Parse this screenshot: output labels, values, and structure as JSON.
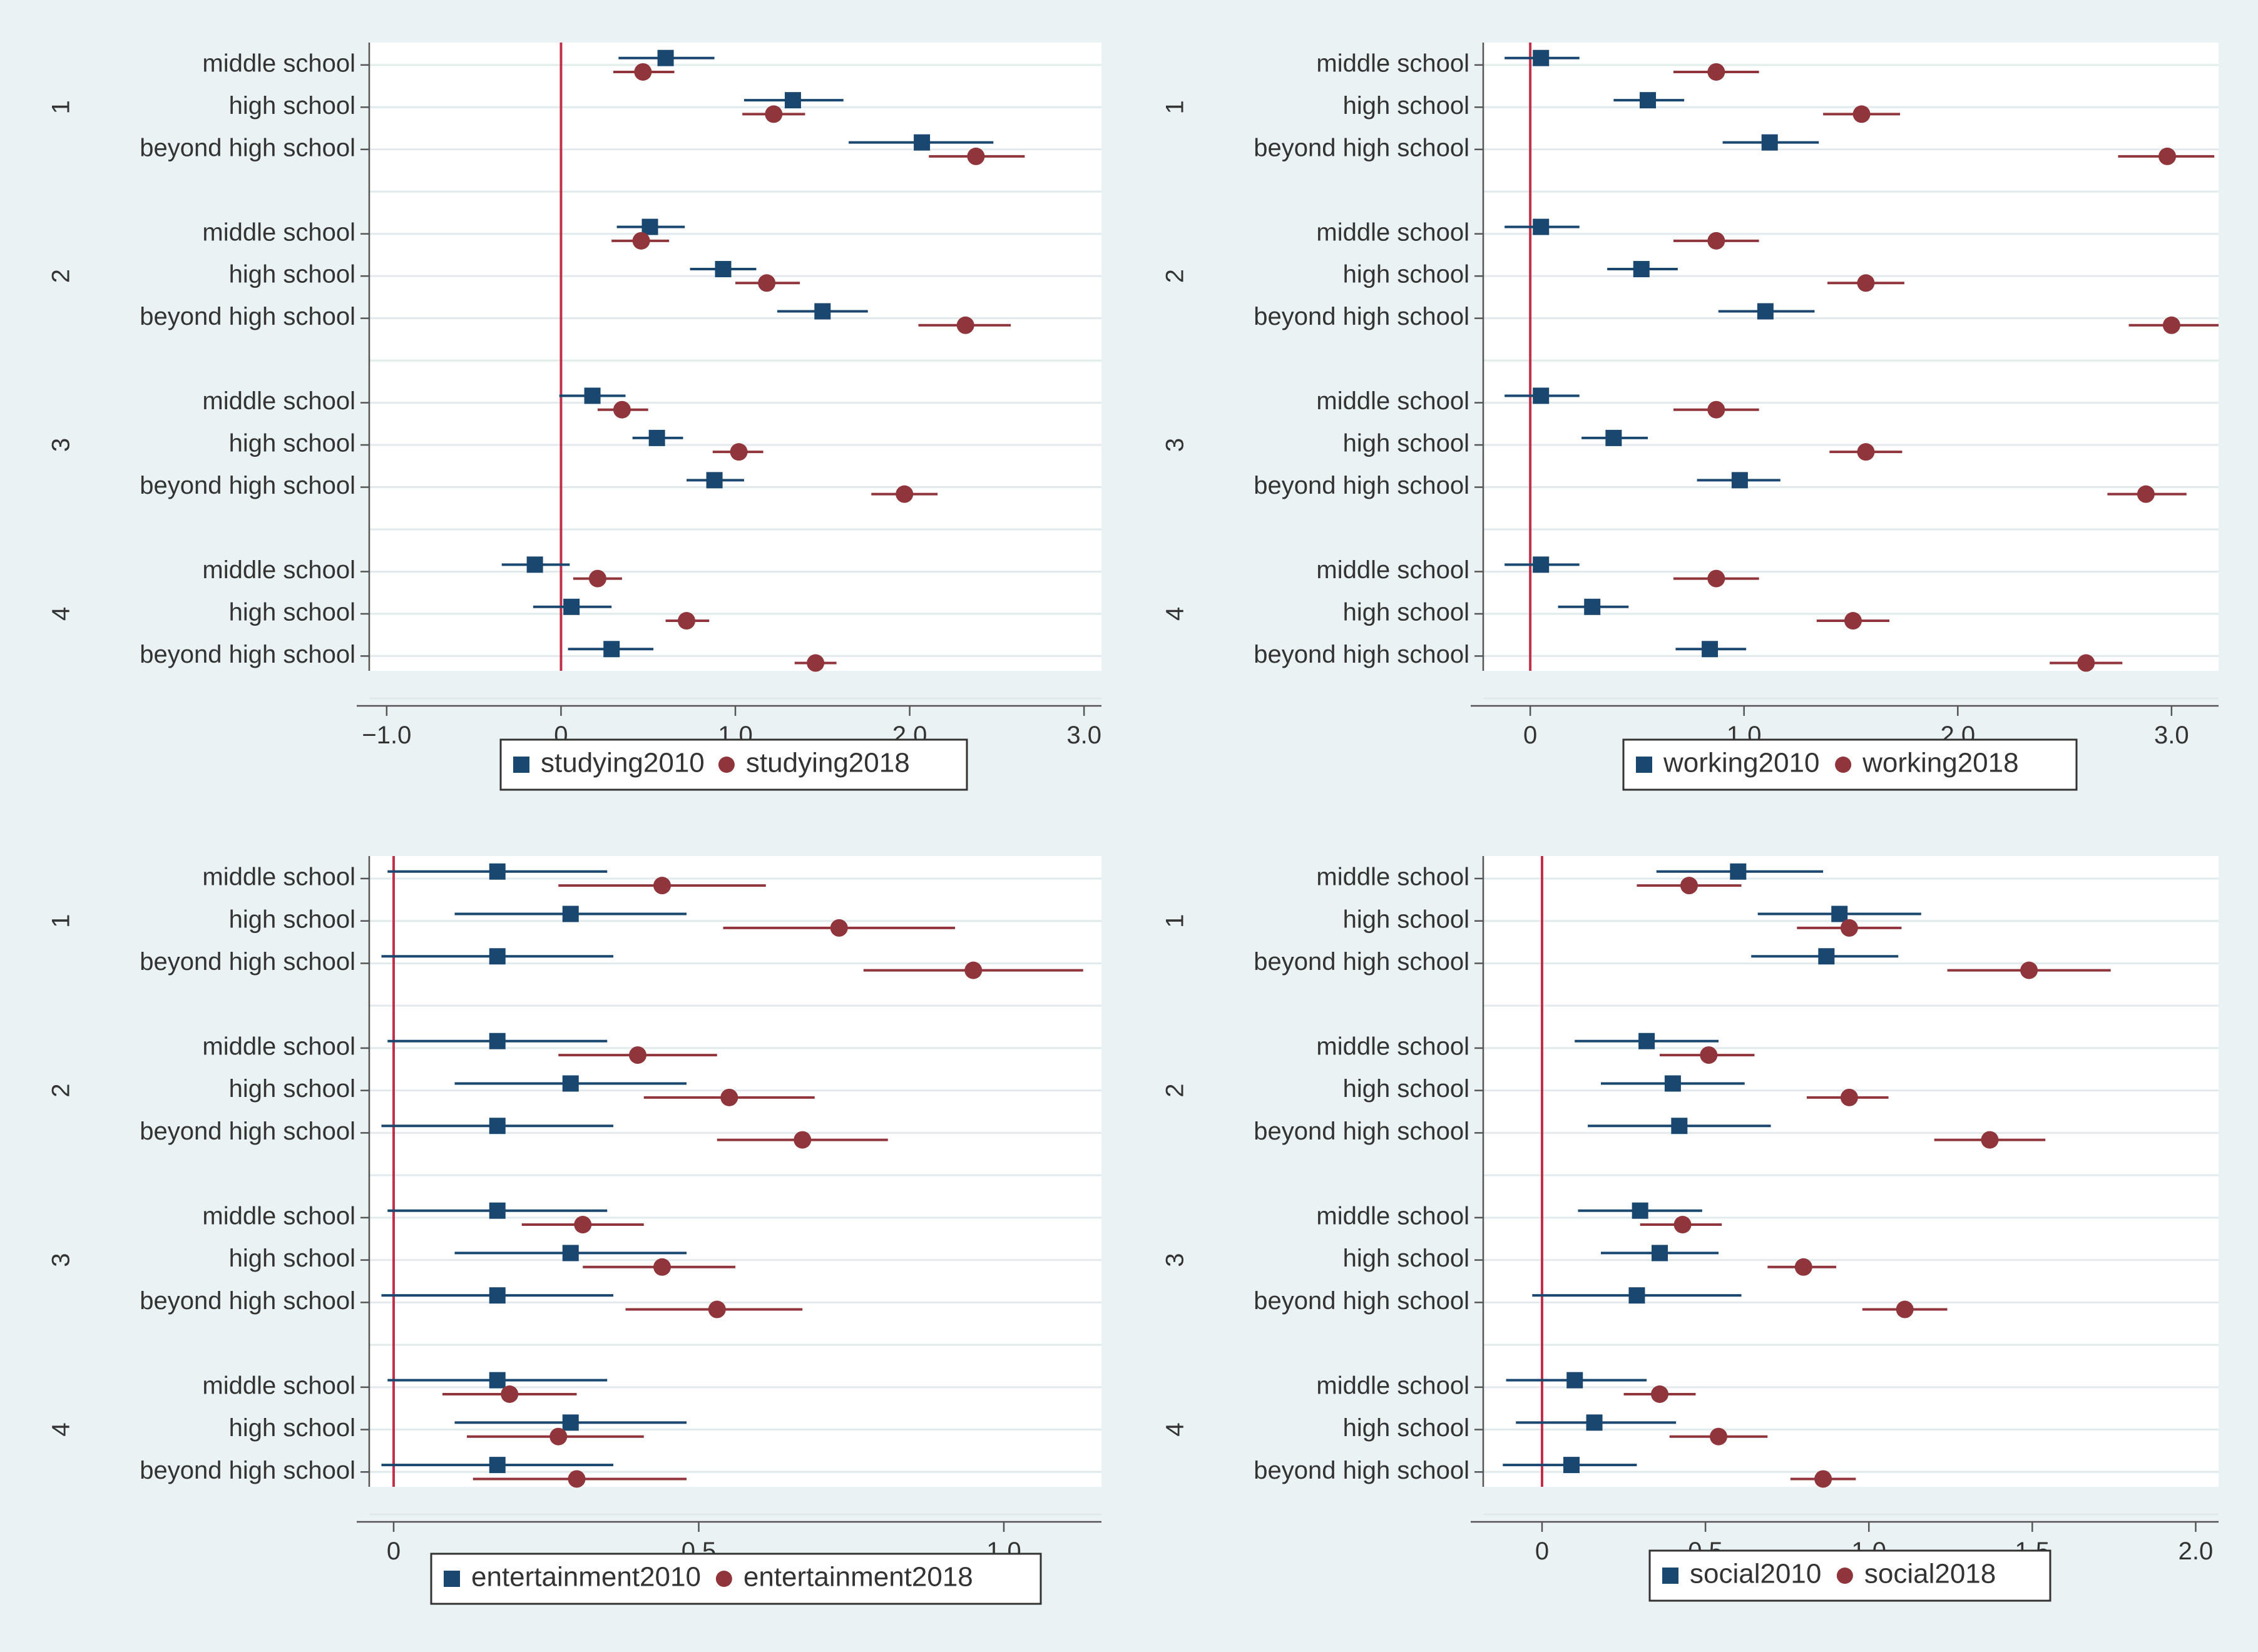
{
  "colors": {
    "background": "#eaf2f3",
    "plot_background": "#ffffff",
    "series_2010": "#1a476f",
    "series_2018": "#90353b",
    "zero_line": "#c0304a",
    "grid": "#e2eaeb",
    "text": "#333333"
  },
  "chart_data": [
    {
      "type": "scatter",
      "subtype": "coefficient-plot",
      "title": "",
      "xlabel": "",
      "ylabel": "",
      "xlim": [
        -1.1,
        3.1
      ],
      "xticks": [
        -1,
        0,
        1,
        2,
        3
      ],
      "xtick_labels": [
        "−1.0",
        "0",
        "1.0",
        "2.0",
        "3.0"
      ],
      "reference_line": 0,
      "groups": [
        "1",
        "2",
        "3",
        "4"
      ],
      "categories": [
        "middle school",
        "high school",
        "beyond high school"
      ],
      "series": [
        {
          "name": "studying2010",
          "marker": "square",
          "color": "#1a476f",
          "points": [
            {
              "est": 0.6,
              "lo": 0.33,
              "hi": 0.88
            },
            {
              "est": 1.33,
              "lo": 1.05,
              "hi": 1.62
            },
            {
              "est": 2.07,
              "lo": 1.65,
              "hi": 2.48
            },
            {
              "est": 0.51,
              "lo": 0.32,
              "hi": 0.71
            },
            {
              "est": 0.93,
              "lo": 0.74,
              "hi": 1.12
            },
            {
              "est": 1.5,
              "lo": 1.24,
              "hi": 1.76
            },
            {
              "est": 0.18,
              "lo": -0.01,
              "hi": 0.37
            },
            {
              "est": 0.55,
              "lo": 0.41,
              "hi": 0.7
            },
            {
              "est": 0.88,
              "lo": 0.72,
              "hi": 1.05
            },
            {
              "est": -0.15,
              "lo": -0.34,
              "hi": 0.05
            },
            {
              "est": 0.06,
              "lo": -0.16,
              "hi": 0.29
            },
            {
              "est": 0.29,
              "lo": 0.04,
              "hi": 0.53
            }
          ]
        },
        {
          "name": "studying2018",
          "marker": "circle",
          "color": "#90353b",
          "points": [
            {
              "est": 0.47,
              "lo": 0.3,
              "hi": 0.65
            },
            {
              "est": 1.22,
              "lo": 1.04,
              "hi": 1.4
            },
            {
              "est": 2.38,
              "lo": 2.11,
              "hi": 2.66
            },
            {
              "est": 0.46,
              "lo": 0.29,
              "hi": 0.62
            },
            {
              "est": 1.18,
              "lo": 1.0,
              "hi": 1.37
            },
            {
              "est": 2.32,
              "lo": 2.05,
              "hi": 2.58
            },
            {
              "est": 0.35,
              "lo": 0.21,
              "hi": 0.5
            },
            {
              "est": 1.02,
              "lo": 0.87,
              "hi": 1.16
            },
            {
              "est": 1.97,
              "lo": 1.78,
              "hi": 2.16
            },
            {
              "est": 0.21,
              "lo": 0.07,
              "hi": 0.35
            },
            {
              "est": 0.72,
              "lo": 0.6,
              "hi": 0.85
            },
            {
              "est": 1.46,
              "lo": 1.34,
              "hi": 1.58
            }
          ]
        }
      ]
    },
    {
      "type": "scatter",
      "subtype": "coefficient-plot",
      "title": "",
      "xlabel": "",
      "ylabel": "",
      "xlim": [
        -0.22,
        3.22
      ],
      "xticks": [
        0,
        1,
        2,
        3
      ],
      "xtick_labels": [
        "0",
        "1.0",
        "2.0",
        "3.0"
      ],
      "reference_line": 0,
      "groups": [
        "1",
        "2",
        "3",
        "4"
      ],
      "categories": [
        "middle school",
        "high school",
        "beyond high school"
      ],
      "series": [
        {
          "name": "working2010",
          "marker": "square",
          "color": "#1a476f",
          "points": [
            {
              "est": 0.05,
              "lo": -0.12,
              "hi": 0.23
            },
            {
              "est": 0.55,
              "lo": 0.39,
              "hi": 0.72
            },
            {
              "est": 1.12,
              "lo": 0.9,
              "hi": 1.35
            },
            {
              "est": 0.05,
              "lo": -0.12,
              "hi": 0.23
            },
            {
              "est": 0.52,
              "lo": 0.36,
              "hi": 0.69
            },
            {
              "est": 1.1,
              "lo": 0.88,
              "hi": 1.33
            },
            {
              "est": 0.05,
              "lo": -0.12,
              "hi": 0.23
            },
            {
              "est": 0.39,
              "lo": 0.24,
              "hi": 0.55
            },
            {
              "est": 0.98,
              "lo": 0.78,
              "hi": 1.17
            },
            {
              "est": 0.05,
              "lo": -0.12,
              "hi": 0.23
            },
            {
              "est": 0.29,
              "lo": 0.13,
              "hi": 0.46
            },
            {
              "est": 0.84,
              "lo": 0.68,
              "hi": 1.01
            }
          ]
        },
        {
          "name": "working2018",
          "marker": "circle",
          "color": "#90353b",
          "points": [
            {
              "est": 0.87,
              "lo": 0.67,
              "hi": 1.07
            },
            {
              "est": 1.55,
              "lo": 1.37,
              "hi": 1.73
            },
            {
              "est": 2.98,
              "lo": 2.75,
              "hi": 3.2
            },
            {
              "est": 0.87,
              "lo": 0.67,
              "hi": 1.07
            },
            {
              "est": 1.57,
              "lo": 1.39,
              "hi": 1.75
            },
            {
              "est": 3.0,
              "lo": 2.8,
              "hi": 3.22
            },
            {
              "est": 0.87,
              "lo": 0.67,
              "hi": 1.07
            },
            {
              "est": 1.57,
              "lo": 1.4,
              "hi": 1.74
            },
            {
              "est": 2.88,
              "lo": 2.7,
              "hi": 3.07
            },
            {
              "est": 0.87,
              "lo": 0.67,
              "hi": 1.07
            },
            {
              "est": 1.51,
              "lo": 1.34,
              "hi": 1.68
            },
            {
              "est": 2.6,
              "lo": 2.43,
              "hi": 2.77
            }
          ]
        }
      ]
    },
    {
      "type": "scatter",
      "subtype": "coefficient-plot",
      "title": "",
      "xlabel": "",
      "ylabel": "",
      "xlim": [
        -0.04,
        1.16
      ],
      "xticks": [
        0,
        0.5,
        1.0
      ],
      "xtick_labels": [
        "0",
        "0.5",
        "1.0"
      ],
      "reference_line": 0,
      "groups": [
        "1",
        "2",
        "3",
        "4"
      ],
      "categories": [
        "middle school",
        "high school",
        "beyond high school"
      ],
      "series": [
        {
          "name": "entertainment2010",
          "marker": "square",
          "color": "#1a476f",
          "points": [
            {
              "est": 0.17,
              "lo": -0.01,
              "hi": 0.35
            },
            {
              "est": 0.29,
              "lo": 0.1,
              "hi": 0.48
            },
            {
              "est": 0.17,
              "lo": -0.02,
              "hi": 0.36
            },
            {
              "est": 0.17,
              "lo": -0.01,
              "hi": 0.35
            },
            {
              "est": 0.29,
              "lo": 0.1,
              "hi": 0.48
            },
            {
              "est": 0.17,
              "lo": -0.02,
              "hi": 0.36
            },
            {
              "est": 0.17,
              "lo": -0.01,
              "hi": 0.35
            },
            {
              "est": 0.29,
              "lo": 0.1,
              "hi": 0.48
            },
            {
              "est": 0.17,
              "lo": -0.02,
              "hi": 0.36
            },
            {
              "est": 0.17,
              "lo": -0.01,
              "hi": 0.35
            },
            {
              "est": 0.29,
              "lo": 0.1,
              "hi": 0.48
            },
            {
              "est": 0.17,
              "lo": -0.02,
              "hi": 0.36
            }
          ]
        },
        {
          "name": "entertainment2018",
          "marker": "circle",
          "color": "#90353b",
          "points": [
            {
              "est": 0.44,
              "lo": 0.27,
              "hi": 0.61
            },
            {
              "est": 0.73,
              "lo": 0.54,
              "hi": 0.92
            },
            {
              "est": 0.95,
              "lo": 0.77,
              "hi": 1.13
            },
            {
              "est": 0.4,
              "lo": 0.27,
              "hi": 0.53
            },
            {
              "est": 0.55,
              "lo": 0.41,
              "hi": 0.69
            },
            {
              "est": 0.67,
              "lo": 0.53,
              "hi": 0.81
            },
            {
              "est": 0.31,
              "lo": 0.21,
              "hi": 0.41
            },
            {
              "est": 0.44,
              "lo": 0.31,
              "hi": 0.56
            },
            {
              "est": 0.53,
              "lo": 0.38,
              "hi": 0.67
            },
            {
              "est": 0.19,
              "lo": 0.08,
              "hi": 0.3
            },
            {
              "est": 0.27,
              "lo": 0.12,
              "hi": 0.41
            },
            {
              "est": 0.3,
              "lo": 0.13,
              "hi": 0.48
            }
          ]
        }
      ]
    },
    {
      "type": "scatter",
      "subtype": "coefficient-plot",
      "title": "",
      "xlabel": "",
      "ylabel": "",
      "xlim": [
        -0.18,
        2.07
      ],
      "xticks": [
        0,
        0.5,
        1.0,
        1.5,
        2.0
      ],
      "xtick_labels": [
        "0",
        "0.5",
        "1.0",
        "1.5",
        "2.0"
      ],
      "reference_line": 0,
      "groups": [
        "1",
        "2",
        "3",
        "4"
      ],
      "categories": [
        "middle school",
        "high school",
        "beyond high school"
      ],
      "series": [
        {
          "name": "social2010",
          "marker": "square",
          "color": "#1a476f",
          "points": [
            {
              "est": 0.6,
              "lo": 0.35,
              "hi": 0.86
            },
            {
              "est": 0.91,
              "lo": 0.66,
              "hi": 1.16
            },
            {
              "est": 0.87,
              "lo": 0.64,
              "hi": 1.09
            },
            {
              "est": 0.32,
              "lo": 0.1,
              "hi": 0.54
            },
            {
              "est": 0.4,
              "lo": 0.18,
              "hi": 0.62
            },
            {
              "est": 0.42,
              "lo": 0.14,
              "hi": 0.7
            },
            {
              "est": 0.3,
              "lo": 0.11,
              "hi": 0.49
            },
            {
              "est": 0.36,
              "lo": 0.18,
              "hi": 0.54
            },
            {
              "est": 0.29,
              "lo": -0.03,
              "hi": 0.61
            },
            {
              "est": 0.1,
              "lo": -0.11,
              "hi": 0.32
            },
            {
              "est": 0.16,
              "lo": -0.08,
              "hi": 0.41
            },
            {
              "est": 0.09,
              "lo": -0.12,
              "hi": 0.29
            }
          ]
        },
        {
          "name": "social2018",
          "marker": "circle",
          "color": "#90353b",
          "points": [
            {
              "est": 0.45,
              "lo": 0.29,
              "hi": 0.61
            },
            {
              "est": 0.94,
              "lo": 0.78,
              "hi": 1.1
            },
            {
              "est": 1.49,
              "lo": 1.24,
              "hi": 1.74
            },
            {
              "est": 0.51,
              "lo": 0.36,
              "hi": 0.65
            },
            {
              "est": 0.94,
              "lo": 0.81,
              "hi": 1.06
            },
            {
              "est": 1.37,
              "lo": 1.2,
              "hi": 1.54
            },
            {
              "est": 0.43,
              "lo": 0.3,
              "hi": 0.55
            },
            {
              "est": 0.8,
              "lo": 0.69,
              "hi": 0.9
            },
            {
              "est": 1.11,
              "lo": 0.98,
              "hi": 1.24
            },
            {
              "est": 0.36,
              "lo": 0.25,
              "hi": 0.47
            },
            {
              "est": 0.54,
              "lo": 0.39,
              "hi": 0.69
            },
            {
              "est": 0.86,
              "lo": 0.76,
              "hi": 0.96
            }
          ]
        }
      ]
    }
  ]
}
